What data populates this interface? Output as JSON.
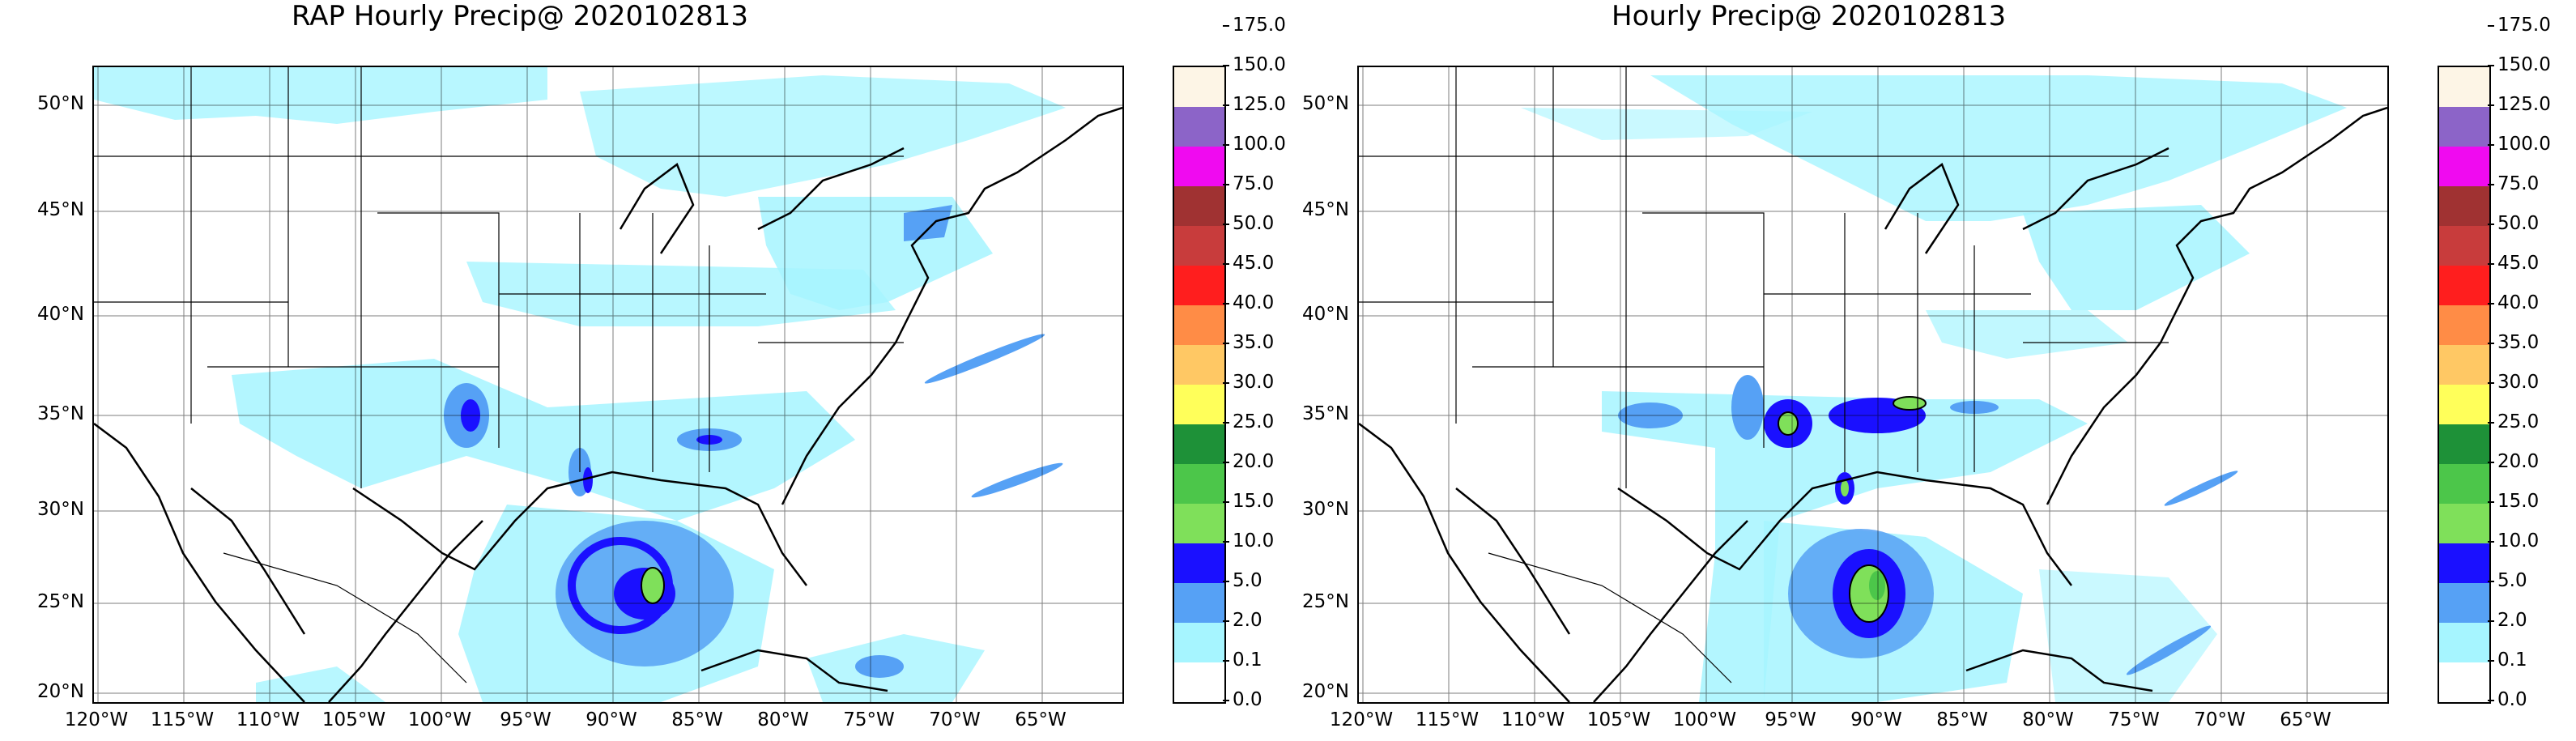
{
  "panels": [
    {
      "title": "RAP Hourly Precip@ 2020102813",
      "lat_labels": [
        "50°N",
        "45°N",
        "40°N",
        "35°N",
        "30°N",
        "25°N",
        "20°N"
      ],
      "lon_labels": [
        "120°W",
        "115°W",
        "110°W",
        "105°W",
        "100°W",
        "95°W",
        "90°W",
        "85°W",
        "80°W",
        "75°W",
        "70°W",
        "65°W"
      ]
    },
    {
      "title": "Hourly Precip@ 2020102813",
      "lat_labels": [
        "50°N",
        "45°N",
        "40°N",
        "35°N",
        "30°N",
        "25°N",
        "20°N"
      ],
      "lon_labels": [
        "120°W",
        "115°W",
        "110°W",
        "105°W",
        "100°W",
        "95°W",
        "90°W",
        "85°W",
        "80°W",
        "75°W",
        "70°W",
        "65°W"
      ]
    }
  ],
  "colorbar": {
    "levels": [
      "0.0",
      "0.1",
      "2.0",
      "5.0",
      "10.0",
      "15.0",
      "20.0",
      "25.0",
      "30.0",
      "35.0",
      "40.0",
      "45.0",
      "50.0",
      "75.0",
      "100.0",
      "125.0",
      "150.0",
      "175.0"
    ],
    "colors": [
      "#ffffff",
      "#a6f5ff",
      "#56a1f5",
      "#1a10ff",
      "#7fe05a",
      "#4cc64a",
      "#1e9138",
      "#ffff5a",
      "#ffc864",
      "#ff8c46",
      "#ff1e1e",
      "#c83c3c",
      "#a03232",
      "#f00af0",
      "#8c64c8",
      "#fdf5e6"
    ]
  }
}
